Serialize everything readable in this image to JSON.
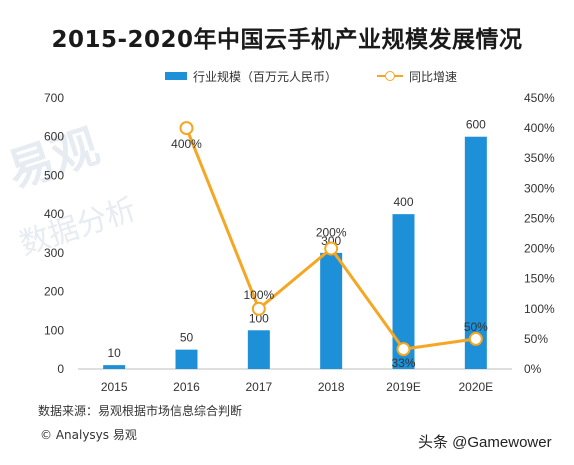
{
  "chart_data": {
    "type": "bar",
    "title": "2015-2020年中国云手机产业规模发展情况",
    "categories": [
      "2015",
      "2016",
      "2017",
      "2018",
      "2019E",
      "2020E"
    ],
    "series": [
      {
        "name": "行业规模（百万元人民币）",
        "kind": "bar",
        "axis": "left",
        "values": [
          10,
          50,
          100,
          300,
          400,
          600
        ],
        "labels": [
          "10",
          "50",
          "100",
          "300",
          "400",
          "600"
        ],
        "color": "#1e90d8"
      },
      {
        "name": "同比增速",
        "kind": "line",
        "axis": "right",
        "values": [
          null,
          400,
          100,
          200,
          33,
          50
        ],
        "labels": [
          null,
          "400%",
          "100%",
          "200%",
          "33%",
          "50%"
        ],
        "color": "#f5a623"
      }
    ],
    "y_left": {
      "min": 0,
      "max": 700,
      "ticks": [
        "0",
        "100",
        "200",
        "300",
        "400",
        "500",
        "600",
        "700"
      ]
    },
    "y_right": {
      "min": 0,
      "max": 450,
      "ticks": [
        "0%",
        "50%",
        "100%",
        "150%",
        "200%",
        "250%",
        "300%",
        "350%",
        "400%",
        "450%"
      ]
    },
    "grid": false,
    "legend": "top"
  },
  "source": "数据来源：易观根据市场信息综合判断",
  "copyright": "© Analysys 易观",
  "attribution": "头条 @Gamewower",
  "watermark": "易观 数据分析"
}
